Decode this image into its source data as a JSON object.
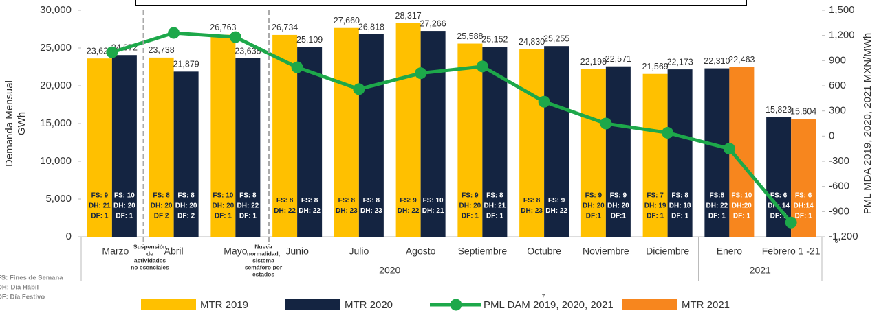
{
  "chart_data": {
    "type": "bar_line",
    "y_title": [
      "Demanda Mensual",
      "GWh"
    ],
    "y2_title": "PML MDA 2019, 2020, 2021 MXN/MWh",
    "categories": [
      "Marzo",
      "Abril",
      "Mayo",
      "Junio",
      "Julio",
      "Agosto",
      "Septiembre",
      "Octubre",
      "Noviembre",
      "Diciembre",
      "Enero",
      "Febrero 1 -21"
    ],
    "groups": [
      {
        "name": "2020",
        "size": 10
      },
      {
        "name": "2021",
        "size": 2
      }
    ],
    "ylim": [
      0,
      30000
    ],
    "yticks": [
      0,
      {
        "value": 5000,
        "label": "5,000"
      },
      {
        "value": 10000,
        "label": "10,000"
      },
      {
        "value": 15000,
        "label": "15,000"
      },
      {
        "value": 20000,
        "label": "20,000"
      },
      {
        "value": 25000,
        "label": "25,000"
      },
      {
        "value": 30000,
        "label": "30,000"
      }
    ],
    "y2lim": [
      -1200,
      1500
    ],
    "y2ticks": [
      {
        "value": -1200,
        "label": "-1,200"
      },
      -900,
      -600,
      -300,
      0,
      300,
      600,
      900,
      {
        "value": 1200,
        "label": "1,200"
      },
      {
        "value": 1500,
        "label": "1,500"
      }
    ],
    "series": [
      {
        "name": "MTR 2019",
        "type": "bar",
        "color": "#FFC000",
        "note_color": "#142441",
        "values": [
          23620,
          23738,
          26763,
          26734,
          27660,
          28317,
          25588,
          24830,
          22198,
          21569,
          null,
          null
        ],
        "value_labels": [
          "23,620",
          "23,738",
          "26,763",
          "26,734",
          "27,660",
          "28,317",
          "25,588",
          "24,830",
          "22,198",
          "21,569",
          null,
          null
        ],
        "notes": [
          [
            "FS: 9",
            "DH: 21",
            "DF: 1"
          ],
          [
            "FS: 8",
            "DH: 20",
            "DF 2"
          ],
          [
            "FS: 10",
            "DH: 20",
            "DF: 1"
          ],
          [
            "FS: 8",
            "DH: 22"
          ],
          [
            "FS: 8",
            "DH: 23"
          ],
          [
            "FS: 9",
            "DH: 22"
          ],
          [
            "FS: 9",
            "DH: 20",
            "DF: 1"
          ],
          [
            "FS: 8",
            "DH: 23"
          ],
          [
            "FS: 9",
            "DH: 20",
            "DF:1"
          ],
          [
            "FS: 7",
            "DH: 19",
            "DF: 1"
          ],
          null,
          null
        ]
      },
      {
        "name": "MTR 2020",
        "type": "bar",
        "color": "#142441",
        "note_color": "#ffffff",
        "values": [
          24072,
          21879,
          23638,
          25109,
          26818,
          27266,
          25152,
          25255,
          22571,
          22173,
          22310,
          15823
        ],
        "value_labels": [
          "24,072",
          "21,879",
          "23,638",
          "25,109",
          "26,818",
          "27,266",
          "25,152",
          "25,255",
          "22,571",
          "22,173",
          "22,310",
          "15,823"
        ],
        "notes": [
          [
            "FS: 10",
            "DH: 20",
            "DF: 1"
          ],
          [
            "FS: 8",
            "DH: 20",
            "DF: 2"
          ],
          [
            "FS: 8",
            "DH: 22",
            "DF: 1"
          ],
          [
            "FS: 8",
            "DH: 22"
          ],
          [
            "FS: 8",
            "DH: 23"
          ],
          [
            "FS: 10",
            "DH: 21"
          ],
          [
            "FS: 8",
            "DH: 21",
            "DF: 1"
          ],
          [
            "FS: 9",
            "DH: 22"
          ],
          [
            "FS: 9",
            "DH: 20",
            "DF:1"
          ],
          [
            "FS: 8",
            "DH: 18",
            "DF: 1"
          ],
          [
            "FS:8",
            "DH: 22",
            "DF: 1"
          ],
          [
            "FS: 6",
            "DH: 14",
            "DF: 1"
          ]
        ]
      },
      {
        "name": "PML DAM 2019, 2020, 2021",
        "type": "line",
        "axis": "y2",
        "color": "#1DA84A",
        "values": [
          1000,
          1230,
          1180,
          820,
          560,
          750,
          830,
          410,
          150,
          40,
          -150,
          -1030
        ]
      },
      {
        "name": "MTR 2021",
        "type": "bar",
        "color": "#F7861E",
        "note_color": "#ffffff",
        "values": [
          null,
          null,
          null,
          null,
          null,
          null,
          null,
          null,
          null,
          null,
          22463,
          15604
        ],
        "value_labels": [
          null,
          null,
          null,
          null,
          null,
          null,
          null,
          null,
          null,
          null,
          "22,463",
          "15,604"
        ],
        "notes": [
          null,
          null,
          null,
          null,
          null,
          null,
          null,
          null,
          null,
          null,
          [
            "FS: 10",
            "DH:20",
            "DF: 1"
          ],
          [
            "FS: 6",
            "DH:14",
            "DF: 1"
          ]
        ]
      }
    ],
    "annotations": [
      [
        "Suspensión",
        "de",
        "actividades",
        "no esenciales"
      ],
      [
        "Nueva",
        "normalidad,",
        "sistema",
        "semáforo por",
        "estados"
      ]
    ],
    "legend_notes": [
      "FS: Fines de Semana",
      "DH: Día Hábil",
      "DF: Día Festivo"
    ],
    "footnote_marks": [
      "6",
      "7"
    ]
  }
}
